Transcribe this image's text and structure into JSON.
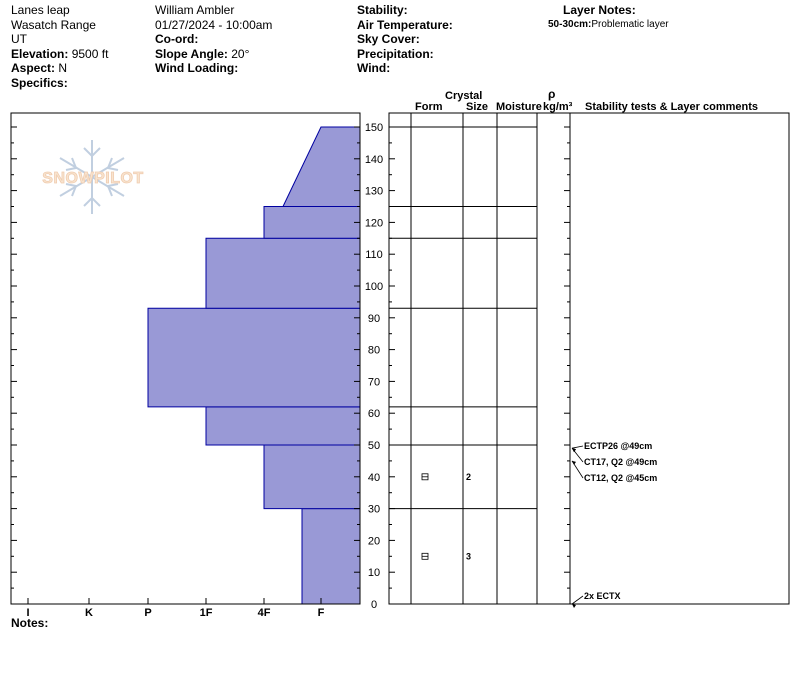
{
  "header": {
    "location": "Lanes leap",
    "range": "Wasatch Range",
    "state": "UT",
    "observer": "William Ambler",
    "datetime": "01/27/2024 - 10:00am",
    "elevation_label": "Elevation:",
    "elevation_value": "9500 ft",
    "aspect_label": "Aspect:",
    "aspect_value": "N",
    "specifics_label": "Specifics:",
    "coord_label": "Co-ord:",
    "slope_label": "Slope Angle:",
    "slope_value": "20°",
    "wind_loading_label": "Wind Loading:",
    "stability_label": "Stability:",
    "air_temp_label": "Air Temperature:",
    "sky_cover_label": "Sky Cover:",
    "precip_label": "Precipitation:",
    "wind_label": "Wind:",
    "layer_notes_label": "Layer Notes:",
    "layer_note_depth": "50-30cm:",
    "layer_note_text": "Problematic layer"
  },
  "logo_text": "SNOWPILOT",
  "table_headers": {
    "crystal": "Crystal",
    "form": "Form",
    "size": "Size",
    "moisture": "Moisture",
    "rho": "ρ",
    "density_unit": "kg/m³",
    "stability": "Stability tests & Layer comments"
  },
  "notes_label": "Notes:",
  "chart_data": {
    "type": "bar",
    "y_axis": {
      "min": 0,
      "max": 150,
      "ticks": [
        0,
        10,
        20,
        30,
        40,
        50,
        60,
        70,
        80,
        90,
        100,
        110,
        120,
        130,
        140,
        150
      ]
    },
    "x_axis": {
      "categories": [
        "I",
        "K",
        "P",
        "1F",
        "4F",
        "F"
      ]
    },
    "hardness_profile": [
      {
        "bottom": 0,
        "top": 30,
        "hardness": "F+"
      },
      {
        "bottom": 30,
        "top": 50,
        "hardness": "4F"
      },
      {
        "bottom": 50,
        "top": 62,
        "hardness": "1F"
      },
      {
        "bottom": 62,
        "top": 93,
        "hardness": "P"
      },
      {
        "bottom": 93,
        "top": 115,
        "hardness": "1F"
      },
      {
        "bottom": 115,
        "top": 125,
        "hardness": "4F"
      },
      {
        "bottom": 125,
        "top": 150,
        "hardness": "4F+ to F",
        "sloped": true
      }
    ],
    "layer_boundaries": [
      0,
      30,
      50,
      62,
      93,
      115,
      125,
      150
    ],
    "crystals": [
      {
        "height": 40,
        "form": "faceted",
        "size": "2"
      },
      {
        "height": 15,
        "form": "faceted",
        "size": "3"
      }
    ],
    "stability_tests": [
      {
        "label": "ECTP26 @49cm",
        "height": 49
      },
      {
        "label": "CT17, Q2 @49cm",
        "height": 49
      },
      {
        "label": "CT12, Q2 @45cm",
        "height": 45
      },
      {
        "label": "2x ECTX",
        "height": 0
      }
    ],
    "colors": {
      "fill": "#9999d6",
      "stroke": "#0000a0"
    }
  }
}
